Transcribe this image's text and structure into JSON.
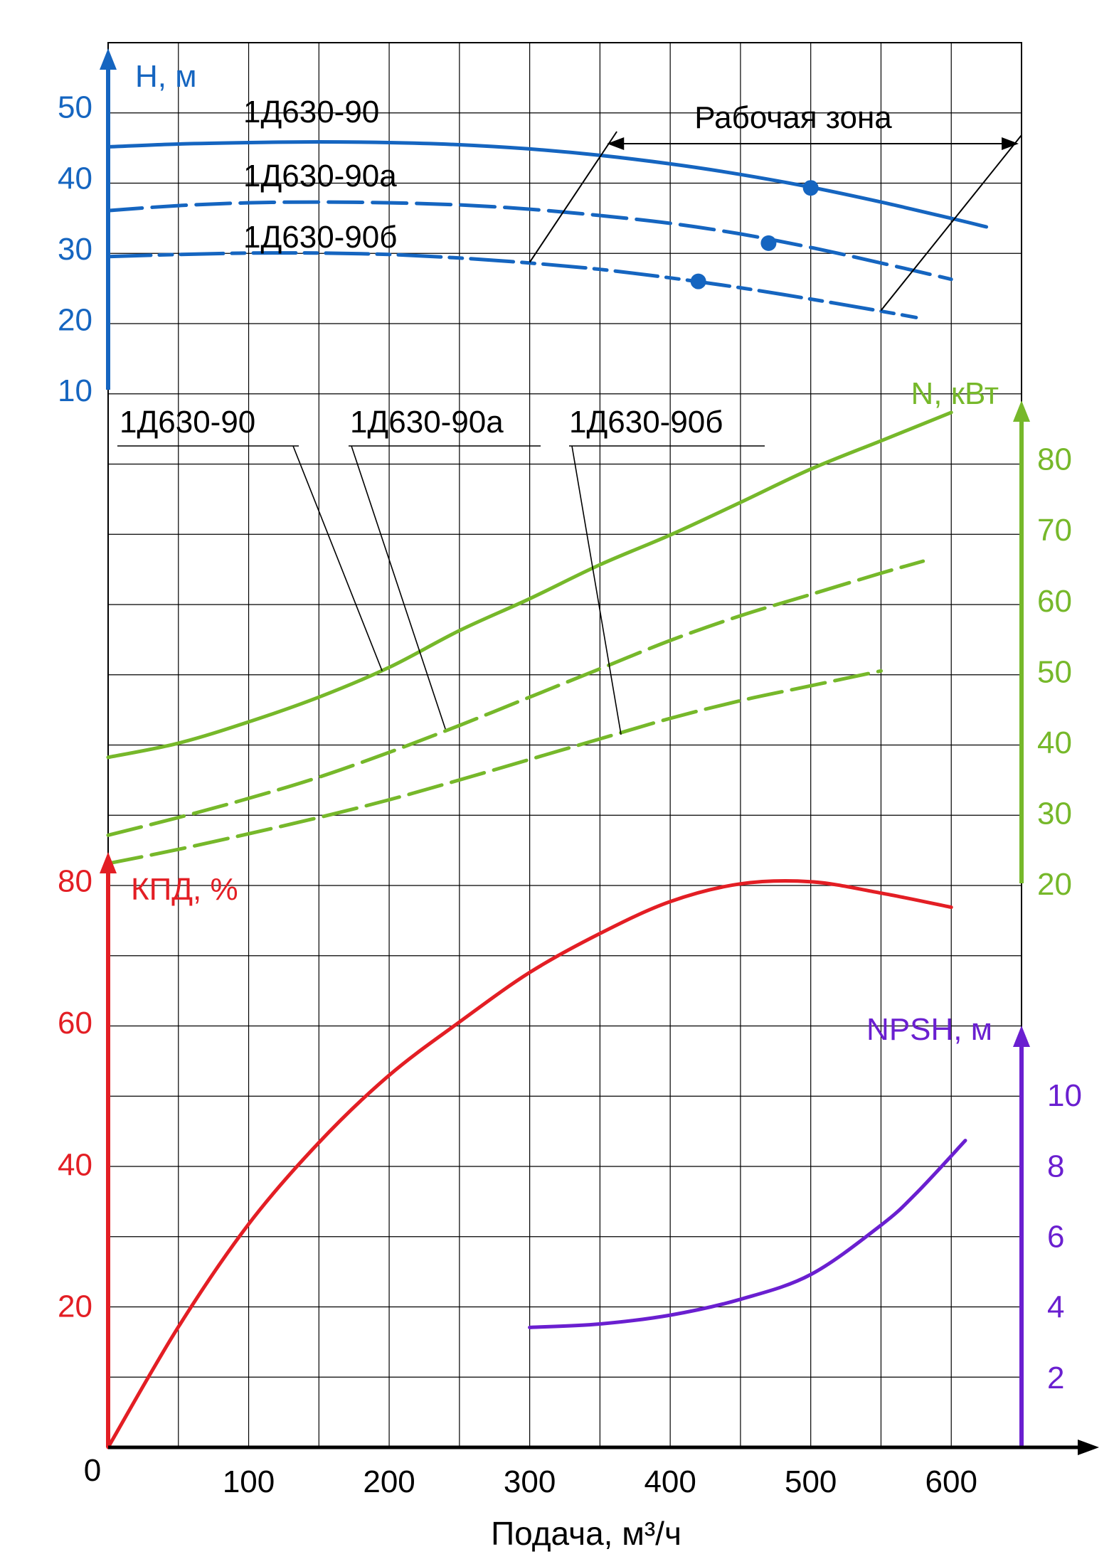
{
  "chart_data": {
    "type": "line",
    "xlabel": "Подача, м³/ч",
    "x_origin_label": "0",
    "x_ticks": [
      "100",
      "200",
      "300",
      "400",
      "500",
      "600"
    ],
    "xlim": [
      0,
      650
    ],
    "colors": {
      "head": "#1565c0",
      "power": "#76b82a",
      "efficiency": "#e31e24",
      "npsh": "#6a1fd0",
      "annotation": "#000000"
    },
    "head": {
      "label": "H, м",
      "ticks": [
        "10",
        "20",
        "30",
        "40",
        "50"
      ],
      "ylim": [
        10,
        57
      ],
      "series": [
        {
          "name": "1Д630-90",
          "style": "solid",
          "x": [
            0,
            50,
            100,
            150,
            200,
            250,
            300,
            350,
            400,
            450,
            500,
            550,
            600,
            625
          ],
          "y": [
            44.3,
            44.7,
            44.9,
            45.0,
            44.9,
            44.6,
            44.0,
            43.1,
            41.9,
            40.4,
            38.6,
            36.5,
            34.2,
            33.0
          ],
          "operating_point": [
            500,
            38.5
          ]
        },
        {
          "name": "1Д630-90а",
          "style": "dashed",
          "x": [
            0,
            50,
            100,
            150,
            200,
            250,
            300,
            350,
            400,
            450,
            500,
            550,
            600
          ],
          "y": [
            35.3,
            36.0,
            36.4,
            36.5,
            36.4,
            36.1,
            35.5,
            34.6,
            33.5,
            32.0,
            30.1,
            27.9,
            25.6
          ],
          "operating_point": [
            470,
            30.7
          ]
        },
        {
          "name": "1Д630-90б",
          "style": "dash-dot",
          "x": [
            0,
            50,
            100,
            150,
            200,
            250,
            300,
            350,
            400,
            450,
            500,
            550,
            575
          ],
          "y": [
            28.8,
            29.1,
            29.3,
            29.3,
            29.1,
            28.6,
            27.9,
            27.0,
            25.8,
            24.4,
            22.8,
            21.1,
            20.2
          ],
          "operating_point": [
            420,
            25.3
          ]
        }
      ]
    },
    "power": {
      "label": "N, кВт",
      "ticks": [
        "20",
        "30",
        "40",
        "50",
        "60",
        "70",
        "80"
      ],
      "ylim": [
        20,
        88
      ],
      "series": [
        {
          "name": "1Д630-90",
          "style": "solid",
          "x": [
            0,
            50,
            100,
            150,
            200,
            250,
            300,
            350,
            400,
            450,
            500,
            550,
            600
          ],
          "y": [
            37.8,
            39.8,
            42.8,
            46.3,
            50.5,
            55.7,
            60.2,
            65.0,
            69.2,
            73.8,
            78.5,
            82.5,
            86.5
          ]
        },
        {
          "name": "1Д630-90а",
          "style": "dashed",
          "x": [
            0,
            50,
            100,
            150,
            200,
            250,
            300,
            350,
            400,
            450,
            500,
            550,
            580
          ],
          "y": [
            26.8,
            29.3,
            32.0,
            35.0,
            38.5,
            42.3,
            46.3,
            50.3,
            54.3,
            57.8,
            60.8,
            63.8,
            65.5
          ]
        },
        {
          "name": "1Д630-90б",
          "style": "dashed",
          "x": [
            0,
            50,
            100,
            150,
            200,
            250,
            300,
            350,
            400,
            450,
            500,
            550
          ],
          "y": [
            22.8,
            24.8,
            27.0,
            29.3,
            31.8,
            34.6,
            37.5,
            40.4,
            43.3,
            45.8,
            47.9,
            50.0
          ]
        }
      ],
      "label_lines": [
        "1Д630-90",
        "1Д630-90а",
        "1Д630-90б"
      ]
    },
    "efficiency": {
      "label": "КПД, %",
      "ticks": [
        "20",
        "40",
        "60",
        "80"
      ],
      "ylim": [
        0,
        88
      ],
      "series": [
        {
          "name": "КПД, %",
          "x": [
            0,
            50,
            100,
            150,
            200,
            250,
            300,
            350,
            400,
            450,
            500,
            550,
            600
          ],
          "y": [
            0,
            17,
            31.5,
            43,
            52.5,
            60,
            67,
            72.5,
            77,
            79.5,
            79.8,
            78.2,
            76.2
          ]
        }
      ]
    },
    "npsh": {
      "label": "NPSH, м",
      "ticks": [
        "2",
        "4",
        "6",
        "8",
        "10"
      ],
      "ylim": [
        0,
        12
      ],
      "series": [
        {
          "name": "NPSH, м",
          "x": [
            300,
            350,
            400,
            450,
            500,
            550,
            575,
            610
          ],
          "y": [
            3.4,
            3.5,
            3.75,
            4.2,
            4.9,
            6.3,
            7.2,
            8.7
          ]
        }
      ]
    },
    "annotations": {
      "working_zone": "Рабочая зона"
    }
  }
}
